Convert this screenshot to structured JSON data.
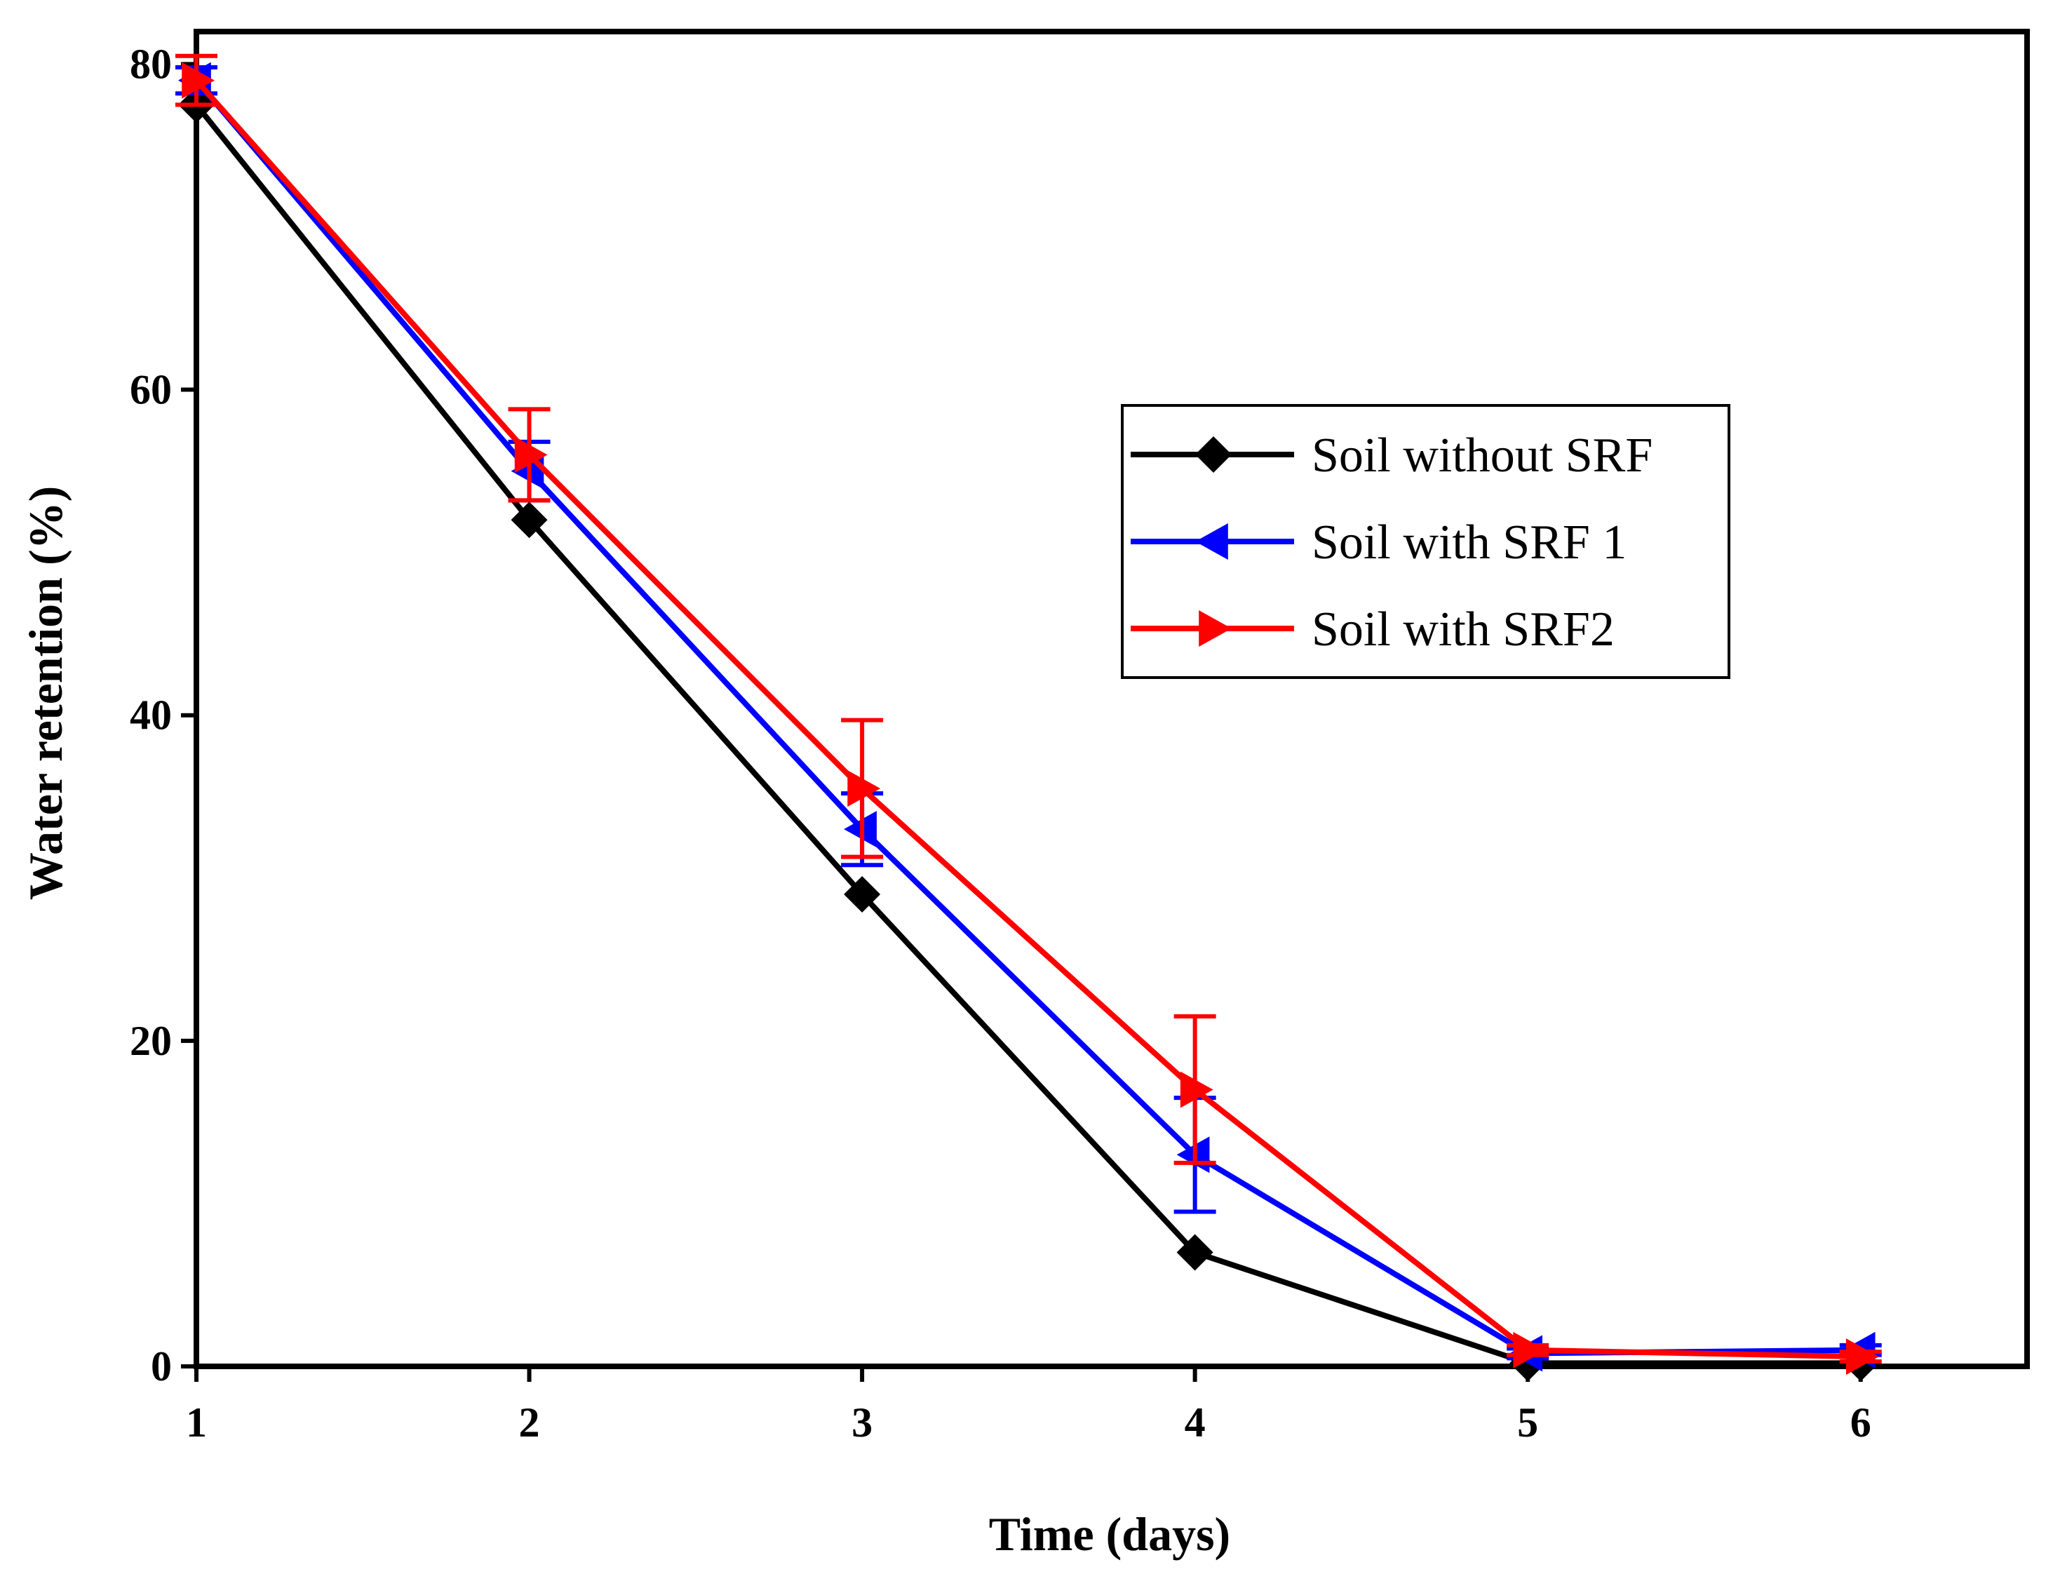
{
  "chart_data": {
    "type": "line",
    "xlabel": "Time (days)",
    "ylabel": "Water retention (%)",
    "xlim": [
      1,
      6.5
    ],
    "ylim": [
      0,
      82
    ],
    "x_ticks": [
      1,
      2,
      3,
      4,
      5,
      6
    ],
    "y_ticks": [
      0,
      20,
      40,
      60,
      80
    ],
    "grid": false,
    "legend_position": "upper-right",
    "series": [
      {
        "name": "Soil without SRF",
        "color": "#000000",
        "marker": "diamond",
        "x": [
          1,
          2,
          3,
          4,
          5,
          6
        ],
        "y": [
          77.5,
          52,
          29,
          7,
          0.2,
          0.2
        ],
        "err": [
          0,
          0,
          0,
          0,
          0,
          0
        ]
      },
      {
        "name": "Soil with SRF 1",
        "color": "#0000ff",
        "marker": "triangle-left",
        "x": [
          1,
          2,
          3,
          4,
          5,
          6
        ],
        "y": [
          79,
          55,
          33,
          13,
          0.8,
          1
        ],
        "err": [
          0.8,
          1.8,
          2.2,
          3.5,
          0.3,
          0.3
        ]
      },
      {
        "name": "Soil with SRF2",
        "color": "#ff0000",
        "marker": "triangle-right",
        "x": [
          1,
          2,
          3,
          4,
          5,
          6
        ],
        "y": [
          79,
          56,
          35.5,
          17,
          1,
          0.6
        ],
        "err": [
          1.5,
          2.8,
          4.2,
          4.5,
          0.3,
          0.3
        ]
      }
    ]
  }
}
